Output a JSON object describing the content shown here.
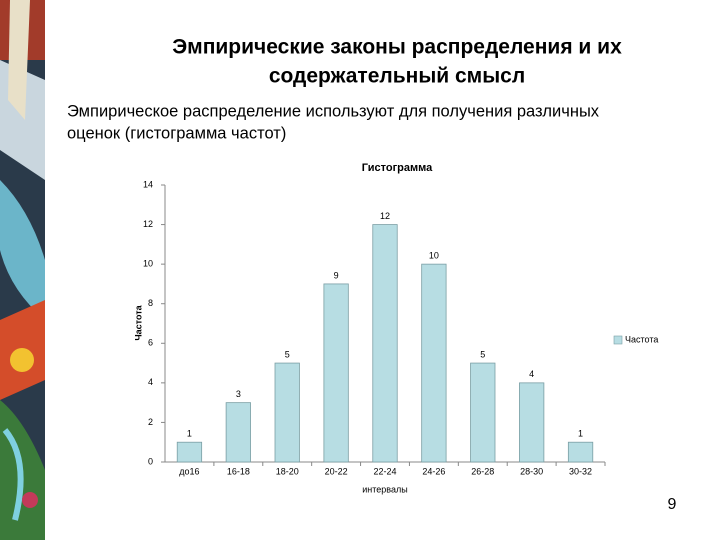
{
  "slide": {
    "title_lines": [
      "Эмпирические законы распределения и их",
      "содержательный смысл"
    ],
    "body_lines": [
      "Эмпирическое распределение используют для получения различных",
      "оценок (гистограмма частот)"
    ],
    "page_number": "9"
  },
  "chart_data": {
    "type": "bar",
    "title": "Гистограмма",
    "x_label": "интервалы",
    "y_label": "Частота",
    "categories": [
      "до16",
      "16-18",
      "18-20",
      "20-22",
      "22-24",
      "24-26",
      "26-28",
      "28-30",
      "30-32"
    ],
    "series": [
      {
        "name": "Частота",
        "color": "#b7dde3",
        "values": [
          1,
          3,
          5,
          9,
          12,
          10,
          5,
          4,
          1
        ]
      }
    ],
    "ylim": [
      0,
      14
    ],
    "yticks": [
      0,
      2,
      4,
      6,
      8,
      10,
      12,
      14
    ],
    "grid": false,
    "legend": "right",
    "data_labels": true
  }
}
